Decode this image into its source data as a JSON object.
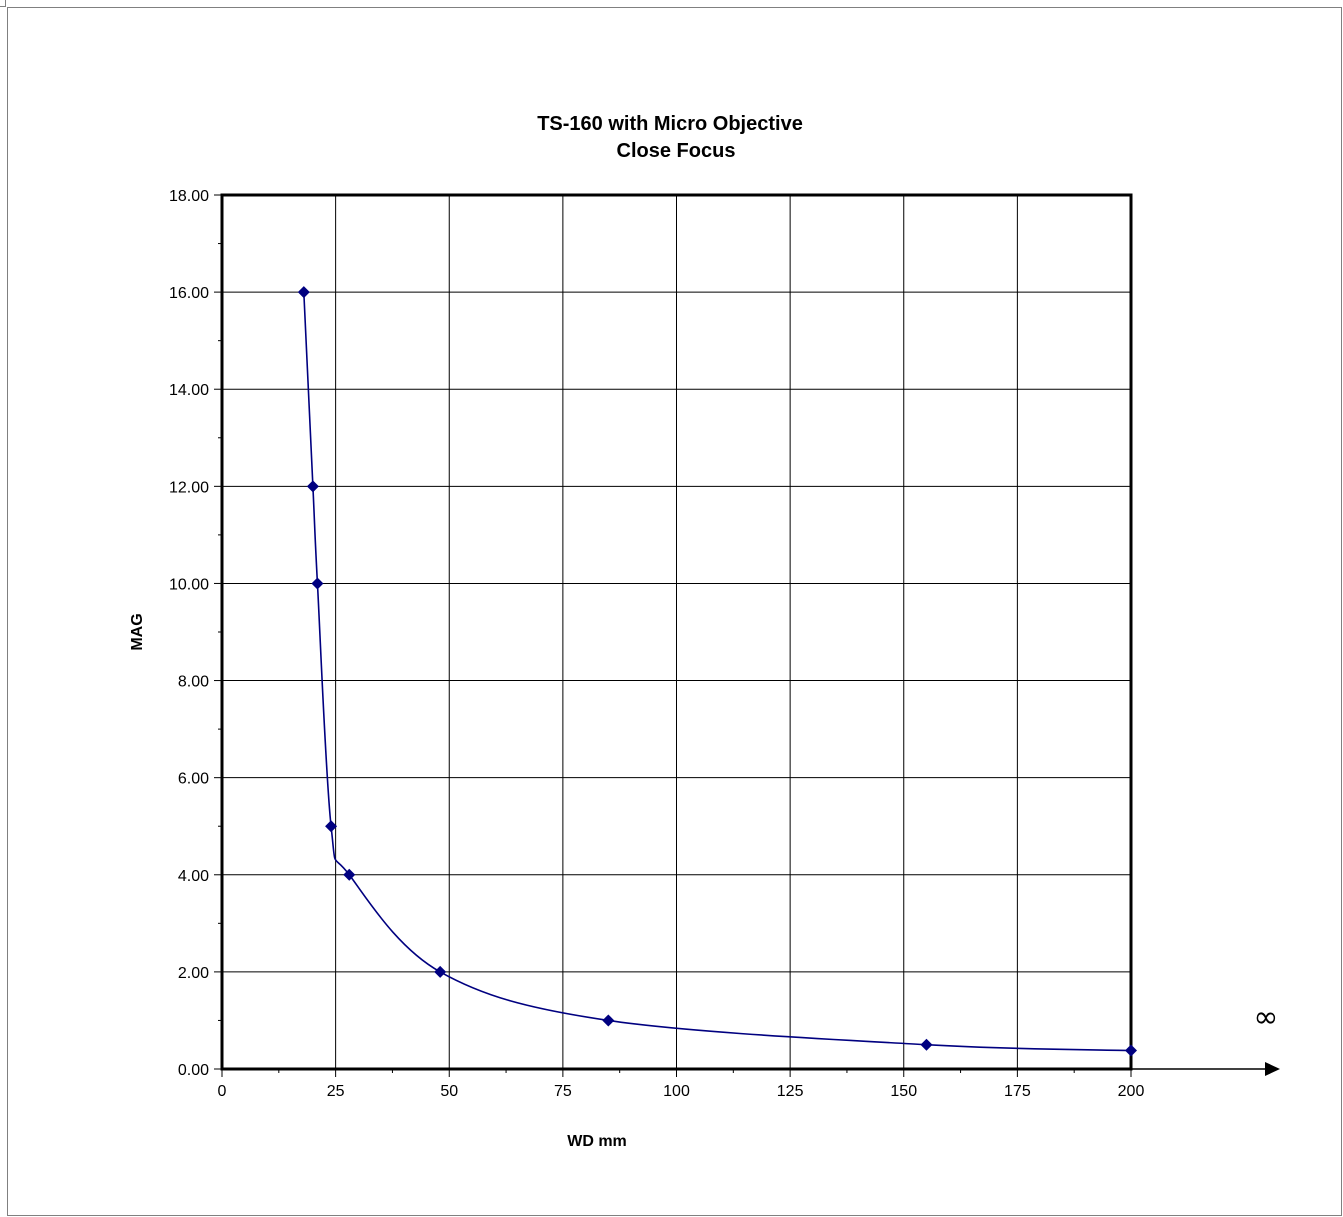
{
  "chart_data": {
    "type": "scatter",
    "title": "TS-160 with Micro Objective",
    "subtitle": "Close Focus",
    "xlabel": "WD mm",
    "ylabel": "MAG",
    "xlim": [
      0,
      200
    ],
    "ylim": [
      0,
      18
    ],
    "x_ticks": [
      "0",
      "25",
      "50",
      "75",
      "100",
      "125",
      "150",
      "175",
      "200"
    ],
    "y_ticks": [
      "0.00",
      "2.00",
      "4.00",
      "6.00",
      "8.00",
      "10.00",
      "12.00",
      "14.00",
      "16.00",
      "18.00"
    ],
    "infinity_label": "∞",
    "grid": true,
    "smooth_line": true,
    "series_color": "#000080",
    "series": [
      {
        "x": [
          18,
          20,
          21,
          24,
          28,
          48,
          85,
          155,
          200
        ],
        "y": [
          16,
          12,
          10,
          5,
          4,
          2,
          1,
          0.5,
          0.38
        ]
      }
    ]
  }
}
